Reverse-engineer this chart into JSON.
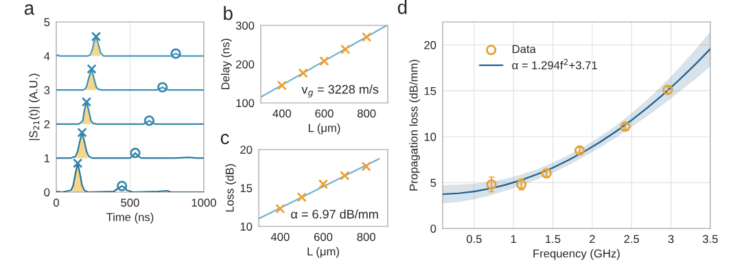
{
  "chart_data": [
    {
      "type": "line",
      "title": "a",
      "xlabel": "Time (ns)",
      "ylabel": "|S$_{21}$(t)| (A.U.)",
      "xlim": [
        0,
        1000
      ],
      "xticks": [
        0,
        500,
        1000
      ],
      "ylim": [
        0,
        5
      ],
      "yticks": [
        0,
        1,
        2,
        3,
        4,
        5
      ],
      "grid": "x",
      "series": [
        {
          "type": "area",
          "color": "#f5d68a",
          "x": [
            108,
            115,
            130,
            145,
            160,
            175,
            182
          ],
          "values": [
            0,
            0.2,
            0.55,
            0.85,
            0.55,
            0.2,
            0
          ]
        },
        {
          "type": "area",
          "color": "#f5d68a",
          "x": [
            138,
            145,
            160,
            175,
            190,
            205,
            212
          ],
          "values": [
            1,
            1.2,
            1.5,
            1.75,
            1.5,
            1.2,
            1
          ]
        },
        {
          "type": "area",
          "color": "#f5d68a",
          "x": [
            175,
            180,
            190,
            205,
            220,
            235,
            240
          ],
          "values": [
            2,
            2.1,
            2.4,
            2.65,
            2.4,
            2.1,
            2
          ]
        },
        {
          "type": "area",
          "color": "#f5d68a",
          "x": [
            200,
            205,
            220,
            240,
            255,
            270,
            275
          ],
          "values": [
            3,
            3.1,
            3.35,
            3.62,
            3.35,
            3.1,
            3
          ]
        },
        {
          "type": "area",
          "color": "#f5d68a",
          "x": [
            238,
            245,
            255,
            270,
            285,
            300,
            308
          ],
          "values": [
            4,
            4.2,
            4.4,
            4.57,
            4.35,
            4.1,
            4
          ]
        },
        {
          "color": "#2a6f97",
          "x": [
            0,
            20,
            40,
            85,
            100,
            115,
            130,
            145,
            160,
            175,
            190,
            215,
            390,
            410,
            430,
            445,
            460,
            480,
            520,
            690,
            720,
            750,
            780,
            1000
          ],
          "values": [
            0.02,
            0.01,
            0.0,
            0.04,
            0.05,
            0.2,
            0.55,
            0.85,
            0.55,
            0.2,
            0.05,
            0.0,
            0.02,
            0.08,
            0.14,
            0.18,
            0.14,
            0.05,
            0.0,
            0.02,
            0.03,
            0.04,
            0.0,
            0.0
          ]
        },
        {
          "color": "#2f7ba3",
          "x": [
            0,
            100,
            115,
            130,
            145,
            160,
            175,
            190,
            205,
            220,
            245,
            500,
            515,
            535,
            555,
            575,
            800,
            850,
            900,
            950,
            1000
          ],
          "values": [
            1.0,
            1.0,
            1.03,
            1.04,
            1.2,
            1.5,
            1.75,
            1.5,
            1.2,
            1.05,
            1.0,
            1.0,
            1.05,
            1.15,
            1.06,
            1.0,
            1.0,
            1.01,
            1.02,
            1.0,
            1.0
          ]
        },
        {
          "color": "#3688ae",
          "x": [
            0,
            150,
            165,
            180,
            190,
            205,
            220,
            235,
            250,
            275,
            590,
            610,
            630,
            650,
            670,
            1000
          ],
          "values": [
            2.0,
            2.0,
            2.03,
            2.1,
            2.4,
            2.65,
            2.4,
            2.1,
            2.02,
            2.0,
            2.0,
            2.04,
            2.1,
            2.04,
            2.0,
            2.0
          ]
        },
        {
          "color": "#3d92b8",
          "x": [
            0,
            180,
            195,
            205,
            220,
            240,
            255,
            270,
            285,
            310,
            680,
            700,
            720,
            740,
            760,
            1000
          ],
          "values": [
            3.0,
            3.0,
            3.03,
            3.1,
            3.35,
            3.62,
            3.35,
            3.1,
            3.02,
            3.0,
            3.0,
            3.04,
            3.08,
            3.03,
            3.0,
            3.0
          ]
        },
        {
          "color": "#459cc2",
          "x": [
            0,
            10,
            20,
            215,
            230,
            245,
            255,
            270,
            285,
            300,
            320,
            780,
            795,
            810,
            825,
            840,
            1000
          ],
          "values": [
            4.0,
            4.03,
            4.0,
            4.0,
            4.03,
            4.2,
            4.4,
            4.57,
            4.35,
            4.1,
            4.0,
            4.0,
            4.04,
            4.07,
            4.04,
            4.0,
            4.0
          ]
        },
        {
          "type": "scatter",
          "marker": "cross",
          "color": "#3688ae",
          "x": [
            145,
            175,
            205,
            240,
            270
          ],
          "values": [
            0.85,
            1.75,
            2.65,
            3.62,
            4.57
          ]
        },
        {
          "type": "scatter",
          "marker": "circle",
          "color": "#3688ae",
          "x": [
            445,
            535,
            630,
            720,
            810
          ],
          "values": [
            0.18,
            1.15,
            2.1,
            3.08,
            4.07
          ]
        }
      ]
    },
    {
      "type": "scatter",
      "title": "b",
      "xlabel": "L (μm)",
      "ylabel": "Delay (ns)",
      "xlim": [
        300,
        900
      ],
      "xticks": [
        400,
        600,
        800
      ],
      "ylim": [
        100,
        300
      ],
      "yticks": [
        100,
        200,
        300
      ],
      "annotations": [
        "v$_{g}$ = 3228 m/s"
      ],
      "series": [
        {
          "type": "line",
          "color": "#6fb3cf",
          "x": [
            300,
            895
          ],
          "values": [
            115,
            300
          ]
        },
        {
          "marker": "cross",
          "color": "#f0a030",
          "x": [
            400,
            500,
            600,
            700,
            800
          ],
          "values": [
            145,
            177,
            208,
            238,
            270
          ]
        }
      ]
    },
    {
      "type": "scatter",
      "title": "c",
      "xlabel": "L (μm)",
      "ylabel": "Loss (dB)",
      "xlim": [
        300,
        900
      ],
      "xticks": [
        400,
        600,
        800
      ],
      "ylim": [
        10,
        20
      ],
      "yticks": [
        10,
        15,
        20
      ],
      "annotations": [
        "α = 6.97 dB/mm"
      ],
      "series": [
        {
          "type": "line",
          "color": "#6fb3cf",
          "x": [
            300,
            860
          ],
          "values": [
            11.0,
            18.8
          ]
        },
        {
          "marker": "cross",
          "color": "#f0a030",
          "x": [
            400,
            500,
            600,
            700,
            800
          ],
          "values": [
            12.3,
            13.8,
            15.5,
            16.6,
            17.8
          ]
        }
      ]
    },
    {
      "type": "scatter",
      "title": "d",
      "xlabel": "Frequency (GHz)",
      "ylabel": "Propagation loss (dB/mm)",
      "xlim": [
        0.1,
        3.5
      ],
      "xticks": [
        0.5,
        1,
        1.5,
        2,
        2.5,
        3,
        3.5
      ],
      "ylim": [
        0,
        22.5
      ],
      "yticks": [
        0,
        5,
        10,
        15,
        20
      ],
      "grid": true,
      "legend": "top left",
      "series": [
        {
          "name": "Data",
          "marker": "circle",
          "color": "#e8a030",
          "x": [
            0.72,
            1.1,
            1.42,
            1.84,
            2.42,
            2.96
          ],
          "values": [
            4.8,
            4.8,
            6.0,
            8.5,
            11.1,
            15.1
          ],
          "errors": [
            0.8,
            0.6,
            0.3,
            0.3,
            0.3,
            0.4
          ]
        },
        {
          "type": "line",
          "name": "α = 1.294f$^{2}$+3.71",
          "color": "#1f5f8f",
          "x": [
            0.1,
            0.3,
            0.5,
            0.7,
            0.9,
            1.1,
            1.3,
            1.5,
            1.7,
            1.9,
            2.1,
            2.3,
            2.5,
            2.7,
            2.9,
            3.1,
            3.3,
            3.5
          ],
          "values": [
            3.72,
            3.83,
            4.03,
            4.34,
            4.76,
            5.28,
            5.9,
            6.62,
            7.45,
            8.38,
            9.42,
            10.56,
            11.8,
            13.14,
            14.59,
            16.15,
            17.8,
            19.56
          ],
          "lower": [
            2.72,
            2.88,
            3.18,
            3.59,
            4.11,
            4.68,
            5.35,
            6.07,
            6.9,
            7.83,
            8.82,
            9.91,
            11.05,
            12.24,
            13.49,
            14.85,
            16.2,
            17.66
          ],
          "upper": [
            4.72,
            4.78,
            4.88,
            5.09,
            5.41,
            5.88,
            6.45,
            7.17,
            8.0,
            8.93,
            10.02,
            11.21,
            12.55,
            14.04,
            15.69,
            17.45,
            19.4,
            21.46
          ]
        }
      ]
    }
  ]
}
